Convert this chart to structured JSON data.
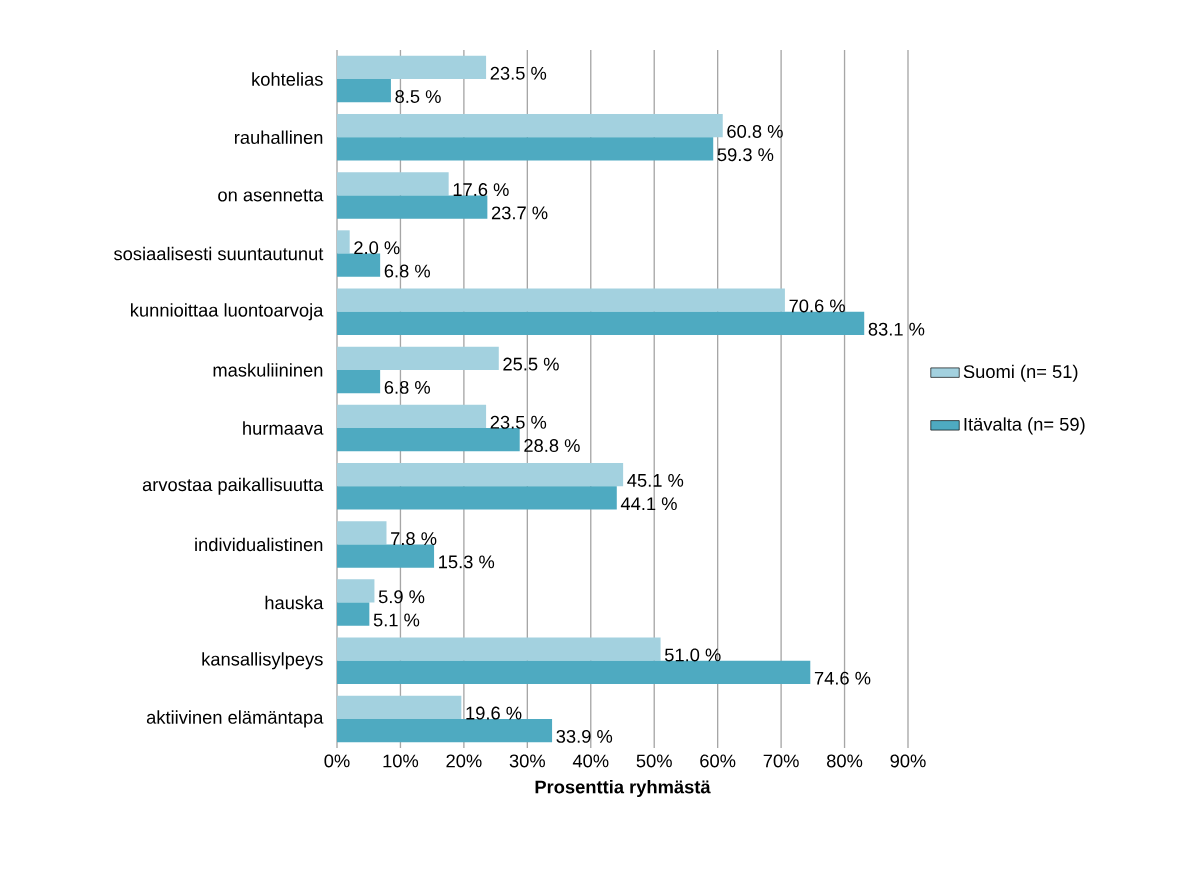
{
  "chart_data": {
    "type": "bar",
    "orientation": "horizontal",
    "categories": [
      "kohtelias",
      "rauhallinen",
      "on asennetta",
      "sosiaalisesti suuntautunut",
      "kunnioittaa luontoarvoja",
      "maskuliininen",
      "hurmaava",
      "arvostaa paikallisuutta",
      "individualistinen",
      "hauska",
      "kansallisylpeys",
      "aktiivinen elämäntapa"
    ],
    "series": [
      {
        "name": "Suomi (n= 51)",
        "color": "#a3d1df",
        "values": [
          23.5,
          60.8,
          17.6,
          2.0,
          70.6,
          25.5,
          23.5,
          45.1,
          7.8,
          5.9,
          51.0,
          19.6
        ],
        "value_labels": [
          "23.5 %",
          "60.8 %",
          "17.6 %",
          "2.0 %",
          "70.6 %",
          "25.5 %",
          "23.5 %",
          "45.1 %",
          "7.8 %",
          "5.9 %",
          "51.0 %",
          "19.6 %"
        ]
      },
      {
        "name": "Itävalta (n= 59)",
        "color": "#4eaac1",
        "values": [
          8.5,
          59.3,
          23.7,
          6.8,
          83.1,
          6.8,
          28.8,
          44.1,
          15.3,
          5.1,
          74.6,
          33.9
        ],
        "value_labels": [
          "8.5 %",
          "59.3 %",
          "23.7 %",
          "6.8 %",
          "83.1 %",
          "6.8 %",
          "28.8 %",
          "44.1 %",
          "15.3 %",
          "5.1 %",
          "74.6 %",
          "33.9 %"
        ]
      }
    ],
    "xlim": [
      0,
      90
    ],
    "xticks": [
      {
        "value": 0,
        "label": "0%"
      },
      {
        "value": 10,
        "label": "10%"
      },
      {
        "value": 20,
        "label": "20%"
      },
      {
        "value": 30,
        "label": "30%"
      },
      {
        "value": 40,
        "label": "40%"
      },
      {
        "value": 50,
        "label": "50%"
      },
      {
        "value": 60,
        "label": "60%"
      },
      {
        "value": 70,
        "label": "70%"
      },
      {
        "value": 80,
        "label": "80%"
      },
      {
        "value": 90,
        "label": "90%"
      }
    ],
    "xlabel": "Prosenttia ryhmästä",
    "grid": "x",
    "legend": "right"
  }
}
